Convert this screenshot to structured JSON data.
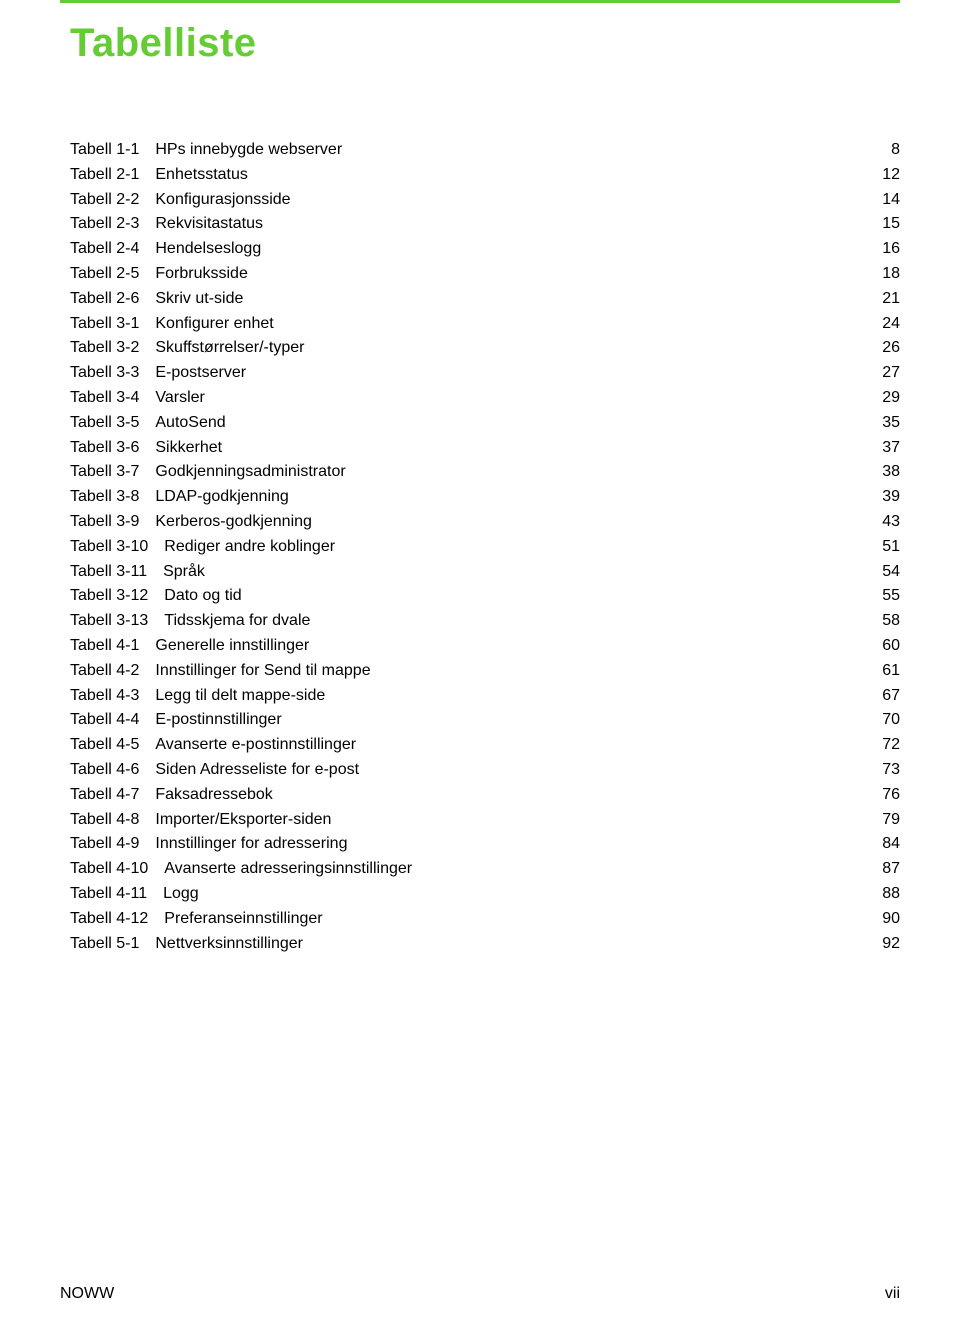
{
  "title": "Tabelliste",
  "footer": {
    "left": "NOWW",
    "right": "vii"
  },
  "colors": {
    "accent": "#66cc33",
    "text": "#000000",
    "background": "#ffffff"
  },
  "typography": {
    "body_font": "Arial",
    "body_size_pt": 12,
    "title_font": "Arial",
    "title_size_pt": 30,
    "title_weight": "bold"
  },
  "toc": {
    "entries": [
      {
        "label": "Tabell 1-1",
        "desc": "HPs innebygde webserver",
        "page": "8"
      },
      {
        "label": "Tabell 2-1",
        "desc": "Enhetsstatus",
        "page": "12"
      },
      {
        "label": "Tabell 2-2",
        "desc": "Konfigurasjonsside",
        "page": "14"
      },
      {
        "label": "Tabell 2-3",
        "desc": "Rekvisitastatus",
        "page": "15"
      },
      {
        "label": "Tabell 2-4",
        "desc": "Hendelseslogg",
        "page": "16"
      },
      {
        "label": "Tabell 2-5",
        "desc": "Forbruksside",
        "page": "18"
      },
      {
        "label": "Tabell 2-6",
        "desc": "Skriv ut-side",
        "page": "21"
      },
      {
        "label": "Tabell 3-1",
        "desc": "Konfigurer enhet",
        "page": "24"
      },
      {
        "label": "Tabell 3-2",
        "desc": "Skuffstørrelser/-typer",
        "page": "26"
      },
      {
        "label": "Tabell 3-3",
        "desc": "E-postserver",
        "page": "27"
      },
      {
        "label": "Tabell 3-4",
        "desc": "Varsler",
        "page": "29"
      },
      {
        "label": "Tabell 3-5",
        "desc": "AutoSend",
        "page": "35"
      },
      {
        "label": "Tabell 3-6",
        "desc": "Sikkerhet",
        "page": "37"
      },
      {
        "label": "Tabell 3-7",
        "desc": "Godkjenningsadministrator",
        "page": "38"
      },
      {
        "label": "Tabell 3-8",
        "desc": "LDAP-godkjenning",
        "page": "39"
      },
      {
        "label": "Tabell 3-9",
        "desc": "Kerberos-godkjenning",
        "page": "43"
      },
      {
        "label": "Tabell 3-10",
        "desc": "Rediger andre koblinger",
        "page": "51"
      },
      {
        "label": "Tabell 3-11",
        "desc": "Språk",
        "page": "54"
      },
      {
        "label": "Tabell 3-12",
        "desc": "Dato og tid",
        "page": "55"
      },
      {
        "label": "Tabell 3-13",
        "desc": "Tidsskjema for dvale",
        "page": "58"
      },
      {
        "label": "Tabell 4-1",
        "desc": "Generelle innstillinger",
        "page": "60"
      },
      {
        "label": "Tabell 4-2",
        "desc": "Innstillinger for Send til mappe",
        "page": "61"
      },
      {
        "label": "Tabell 4-3",
        "desc": "Legg til delt mappe-side",
        "page": "67"
      },
      {
        "label": "Tabell 4-4",
        "desc": "E-postinnstillinger",
        "page": "70"
      },
      {
        "label": "Tabell 4-5",
        "desc": "Avanserte e-postinnstillinger",
        "page": "72"
      },
      {
        "label": "Tabell 4-6",
        "desc": "Siden Adresseliste for e-post",
        "page": "73"
      },
      {
        "label": "Tabell 4-7",
        "desc": "Faksadressebok",
        "page": "76"
      },
      {
        "label": "Tabell 4-8",
        "desc": "Importer/Eksporter-siden",
        "page": "79"
      },
      {
        "label": "Tabell 4-9",
        "desc": "Innstillinger for adressering",
        "page": "84"
      },
      {
        "label": "Tabell 4-10",
        "desc": "Avanserte adresseringsinnstillinger",
        "page": "87"
      },
      {
        "label": "Tabell 4-11",
        "desc": "Logg",
        "page": "88"
      },
      {
        "label": "Tabell 4-12",
        "desc": "Preferanseinnstillinger",
        "page": "90"
      },
      {
        "label": "Tabell 5-1",
        "desc": "Nettverksinnstillinger",
        "page": "92"
      }
    ]
  }
}
